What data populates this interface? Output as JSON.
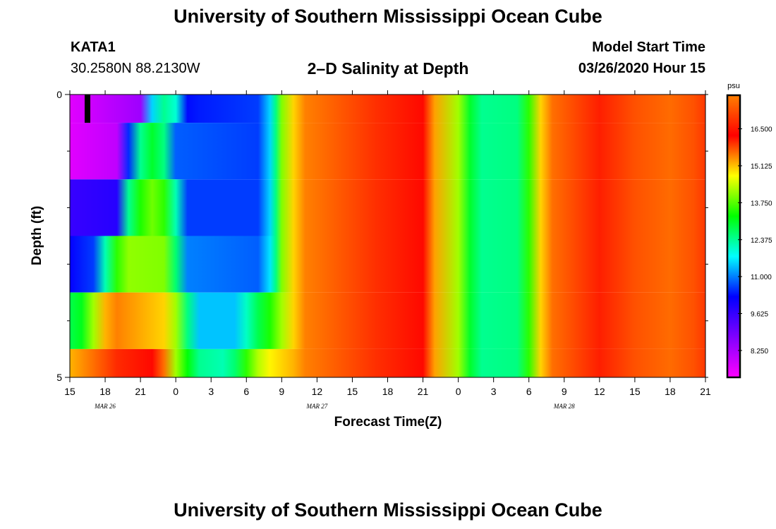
{
  "header": {
    "title": "University of Southern Mississippi Ocean Cube",
    "station_id": "KATA1",
    "coordinates": "30.2580N 88.2130W",
    "chart_title": "2–D Salinity at Depth",
    "model_start_label": "Model Start Time",
    "model_start_value": "03/26/2020 Hour 15"
  },
  "footer": {
    "title": "University of Southern Mississippi Ocean Cube"
  },
  "chart_data": {
    "type": "heatmap",
    "title": "2–D Salinity at Depth",
    "xlabel": "Forecast Time(Z)",
    "ylabel": "Depth (ft)",
    "x_tick_labels": [
      "15",
      "18",
      "21",
      "0",
      "3",
      "6",
      "9",
      "12",
      "15",
      "18",
      "21",
      "0",
      "3",
      "6",
      "9",
      "12",
      "15",
      "18",
      "21"
    ],
    "date_labels": [
      {
        "label": "MAR 26",
        "tick_index": 1
      },
      {
        "label": "MAR 27",
        "tick_index": 7
      },
      {
        "label": "MAR 28",
        "tick_index": 14
      }
    ],
    "forecast_hours": [
      0,
      54
    ],
    "y_ticks": [
      {
        "value": 0,
        "label": "0"
      },
      {
        "value": 5,
        "label": "5"
      }
    ],
    "ylim": [
      0,
      5
    ],
    "depth_layers": 5,
    "colorbar": {
      "unit": "psu",
      "range": [
        7.25,
        17.75
      ],
      "tick_values": [
        8.25,
        9.625,
        11.0,
        12.375,
        13.75,
        15.125,
        16.5
      ],
      "tick_labels": [
        "8.250",
        "9.625",
        "11.000",
        "12.375",
        "13.750",
        "15.125",
        "16.500"
      ],
      "colors": [
        "#ff00ff",
        "#8000ff",
        "#0000ff",
        "#00ffff",
        "#00ff00",
        "#ffff00",
        "#ff0000",
        "#ff8000"
      ]
    },
    "surface_rows": [
      {
        "depth_range": [
          0,
          0.5
        ],
        "knots": [
          [
            0,
            7.6
          ],
          [
            6,
            8.4
          ],
          [
            7,
            11.5
          ],
          [
            8,
            12.4
          ],
          [
            9,
            12.0
          ],
          [
            10,
            10.3
          ],
          [
            11,
            10.4
          ],
          [
            16,
            10.6
          ],
          [
            17,
            11.5
          ],
          [
            17.5,
            12.5
          ],
          [
            18,
            14.0
          ],
          [
            19,
            15.0
          ],
          [
            20,
            15.5
          ],
          [
            26,
            16.8
          ],
          [
            30,
            16.2
          ],
          [
            31,
            15.3
          ],
          [
            33,
            14.2
          ],
          [
            34,
            13.0
          ],
          [
            35,
            12.4
          ],
          [
            38,
            12.5
          ],
          [
            39,
            13.5
          ],
          [
            40,
            15.0
          ],
          [
            41,
            15.6
          ],
          [
            45,
            16.6
          ],
          [
            48,
            17.2
          ],
          [
            51,
            17.5
          ],
          [
            53,
            17.2
          ],
          [
            54,
            16.9
          ]
        ]
      },
      {
        "depth_range": [
          0.5,
          1.5
        ],
        "knots": [
          [
            0,
            7.6
          ],
          [
            4,
            8.0
          ],
          [
            5,
            10.5
          ],
          [
            6,
            12.4
          ],
          [
            7,
            13.0
          ],
          [
            8,
            12.5
          ],
          [
            9,
            10.8
          ],
          [
            16,
            10.6
          ],
          [
            17,
            11.5
          ],
          [
            17.5,
            12.5
          ],
          [
            18,
            14.0
          ],
          [
            19,
            15.0
          ],
          [
            20,
            15.5
          ],
          [
            26,
            16.8
          ],
          [
            30,
            16.2
          ],
          [
            31,
            15.3
          ],
          [
            33,
            14.2
          ],
          [
            34,
            13.0
          ],
          [
            35,
            12.4
          ],
          [
            38,
            12.5
          ],
          [
            39,
            13.5
          ],
          [
            40,
            15.0
          ],
          [
            41,
            15.6
          ],
          [
            45,
            16.6
          ],
          [
            48,
            17.2
          ],
          [
            51,
            17.5
          ],
          [
            53,
            17.2
          ],
          [
            54,
            16.9
          ]
        ]
      },
      {
        "depth_range": [
          1.5,
          2.5
        ],
        "knots": [
          [
            0,
            9.6
          ],
          [
            4,
            9.8
          ],
          [
            5,
            12.4
          ],
          [
            6,
            13.4
          ],
          [
            7,
            13.9
          ],
          [
            8,
            13.5
          ],
          [
            9,
            12.2
          ],
          [
            10,
            10.6
          ],
          [
            16,
            10.6
          ],
          [
            17,
            11.5
          ],
          [
            17.5,
            12.5
          ],
          [
            18,
            14.0
          ],
          [
            19,
            15.0
          ],
          [
            20,
            15.5
          ],
          [
            26,
            16.8
          ],
          [
            30,
            16.2
          ],
          [
            31,
            15.3
          ],
          [
            33,
            14.2
          ],
          [
            34,
            13.0
          ],
          [
            35,
            12.4
          ],
          [
            38,
            12.5
          ],
          [
            39,
            13.5
          ],
          [
            40,
            15.0
          ],
          [
            41,
            15.6
          ],
          [
            45,
            16.6
          ],
          [
            48,
            17.2
          ],
          [
            51,
            17.5
          ],
          [
            53,
            17.2
          ],
          [
            54,
            16.9
          ]
        ]
      },
      {
        "depth_range": [
          2.5,
          3.5
        ],
        "knots": [
          [
            0,
            10.2
          ],
          [
            2,
            10.6
          ],
          [
            3,
            12.2
          ],
          [
            4,
            13.5
          ],
          [
            5,
            14.1
          ],
          [
            8,
            14.0
          ],
          [
            9,
            12.6
          ],
          [
            10,
            11.0
          ],
          [
            16,
            10.8
          ],
          [
            17,
            11.6
          ],
          [
            17.5,
            12.5
          ],
          [
            18,
            14.0
          ],
          [
            19,
            15.0
          ],
          [
            20,
            15.5
          ],
          [
            26,
            16.8
          ],
          [
            30,
            16.2
          ],
          [
            31,
            15.3
          ],
          [
            33,
            14.2
          ],
          [
            34,
            13.0
          ],
          [
            35,
            12.4
          ],
          [
            38,
            12.5
          ],
          [
            39,
            13.5
          ],
          [
            40,
            15.0
          ],
          [
            41,
            15.6
          ],
          [
            45,
            16.6
          ],
          [
            48,
            17.2
          ],
          [
            51,
            17.5
          ],
          [
            53,
            17.2
          ],
          [
            54,
            16.9
          ]
        ]
      },
      {
        "depth_range": [
          3.5,
          4.5
        ],
        "knots": [
          [
            0,
            12.8
          ],
          [
            1,
            13.1
          ],
          [
            2,
            14.2
          ],
          [
            3,
            15.2
          ],
          [
            4,
            15.5
          ],
          [
            8,
            15.0
          ],
          [
            9,
            14.2
          ],
          [
            10,
            12.5
          ],
          [
            11,
            11.4
          ],
          [
            14,
            11.4
          ],
          [
            15,
            12.1
          ],
          [
            16,
            12.8
          ],
          [
            17,
            13.4
          ],
          [
            18,
            14.2
          ],
          [
            19,
            15.0
          ],
          [
            20,
            15.5
          ],
          [
            26,
            16.8
          ],
          [
            30,
            16.2
          ],
          [
            31,
            15.3
          ],
          [
            33,
            14.2
          ],
          [
            34,
            13.0
          ],
          [
            35,
            12.4
          ],
          [
            38,
            12.5
          ],
          [
            39,
            13.5
          ],
          [
            40,
            15.0
          ],
          [
            41,
            15.6
          ],
          [
            45,
            16.6
          ],
          [
            48,
            17.2
          ],
          [
            51,
            17.5
          ],
          [
            53,
            17.2
          ],
          [
            54,
            16.9
          ]
        ]
      },
      {
        "depth_range": [
          4.5,
          5.0
        ],
        "knots": [
          [
            0,
            15.2
          ],
          [
            2,
            15.6
          ],
          [
            4,
            16.0
          ],
          [
            7,
            16.2
          ],
          [
            8,
            15.6
          ],
          [
            9,
            14.2
          ],
          [
            10,
            13.2
          ],
          [
            11,
            12.4
          ],
          [
            13,
            12.2
          ],
          [
            14,
            12.6
          ],
          [
            15,
            13.5
          ],
          [
            16,
            14.3
          ],
          [
            17,
            14.8
          ],
          [
            18,
            15.0
          ],
          [
            19,
            15.2
          ],
          [
            20,
            15.5
          ],
          [
            26,
            16.8
          ],
          [
            30,
            16.2
          ],
          [
            31,
            15.3
          ],
          [
            33,
            14.2
          ],
          [
            34,
            13.0
          ],
          [
            35,
            12.4
          ],
          [
            38,
            12.5
          ],
          [
            39,
            13.5
          ],
          [
            40,
            15.0
          ],
          [
            41,
            15.6
          ],
          [
            45,
            16.6
          ],
          [
            48,
            17.2
          ],
          [
            51,
            17.5
          ],
          [
            53,
            17.2
          ],
          [
            54,
            16.9
          ]
        ]
      }
    ],
    "current_time_marker": {
      "hour": 1.5,
      "depth_range": [
        0,
        0.5
      ],
      "color": "#000000"
    }
  }
}
